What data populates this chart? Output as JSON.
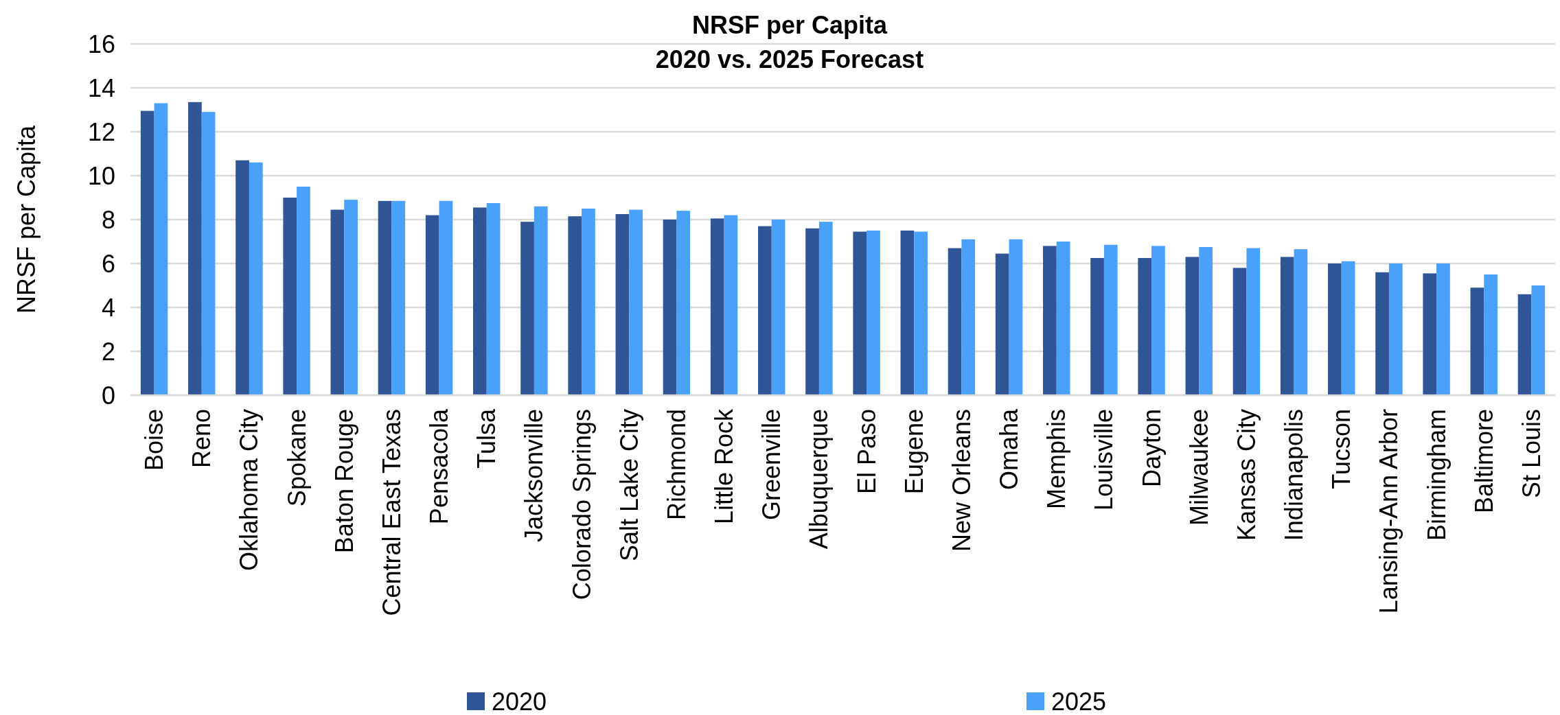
{
  "chart_data": {
    "type": "bar",
    "title": "NRSF per Capita",
    "subtitle": "2020 vs. 2025 Forecast",
    "ylabel": "NRSF per Capita",
    "categories": [
      "Boise",
      "Reno",
      "Oklahoma City",
      "Spokane",
      "Baton Rouge",
      "Central East Texas",
      "Pensacola",
      "Tulsa",
      "Jacksonville",
      "Colorado Springs",
      "Salt Lake City",
      "Richmond",
      "Little Rock",
      "Greenville",
      "Albuquerque",
      "El Paso",
      "Eugene",
      "New Orleans",
      "Omaha",
      "Memphis",
      "Louisville",
      "Dayton",
      "Milwaukee",
      "Kansas City",
      "Indianapolis",
      "Tucson",
      "Lansing-Ann Arbor",
      "Birmingham",
      "Baltimore",
      "St Louis"
    ],
    "series": [
      {
        "name": "2020",
        "color": "#2f5597",
        "values": [
          12.95,
          13.35,
          10.7,
          9.0,
          8.45,
          8.85,
          8.2,
          8.55,
          7.9,
          8.15,
          8.25,
          8.0,
          8.05,
          7.7,
          7.6,
          7.45,
          7.5,
          6.7,
          6.45,
          6.8,
          6.25,
          6.25,
          6.3,
          5.8,
          6.3,
          6.0,
          5.6,
          5.55,
          4.9,
          4.6
        ]
      },
      {
        "name": "2025",
        "color": "#4aa1fa",
        "values": [
          13.3,
          12.9,
          10.6,
          9.5,
          8.9,
          8.85,
          8.85,
          8.75,
          8.6,
          8.5,
          8.45,
          8.4,
          8.2,
          8.0,
          7.9,
          7.5,
          7.45,
          7.1,
          7.1,
          7.0,
          6.85,
          6.8,
          6.75,
          6.7,
          6.65,
          6.1,
          6.0,
          6.0,
          5.5,
          5.0
        ]
      }
    ],
    "ylim": [
      0,
      16
    ],
    "yticks": [
      0,
      2,
      4,
      6,
      8,
      10,
      12,
      14,
      16
    ],
    "grid": "y",
    "legend": "bottom"
  }
}
